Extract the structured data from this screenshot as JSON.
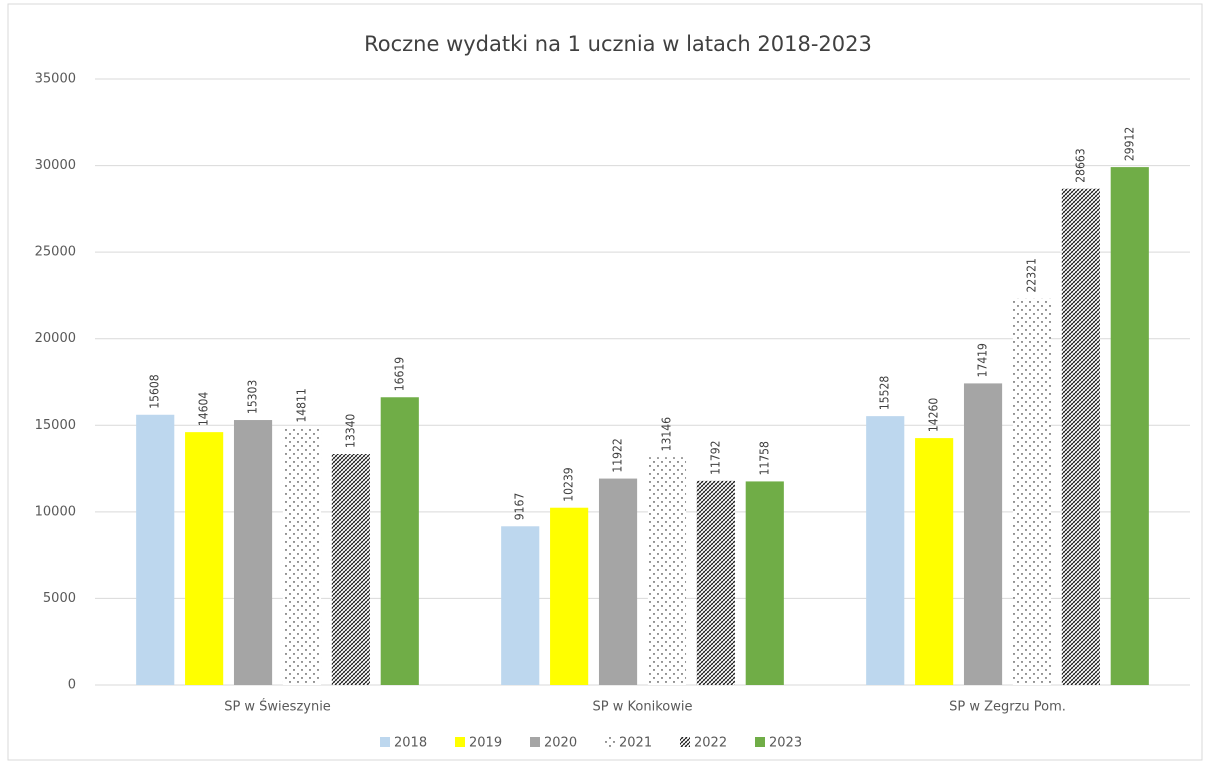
{
  "chart_data": {
    "type": "bar",
    "title": "Roczne wydatki na 1 ucznia w latach 2018-2023",
    "categories": [
      "SP w Świeszynie",
      "SP w Konikowie",
      "SP w Zegrzu Pom."
    ],
    "series": [
      {
        "name": "2018",
        "color": "#bdd7ee",
        "values": [
          15608,
          9167,
          15528
        ]
      },
      {
        "name": "2019",
        "color": "#ffff00",
        "values": [
          14604,
          10239,
          14260
        ]
      },
      {
        "name": "2020",
        "color": "#a5a5a5",
        "values": [
          15303,
          11922,
          17419
        ]
      },
      {
        "name": "2021",
        "color": "#000000",
        "pattern": "dots",
        "values": [
          14811,
          13146,
          22321
        ]
      },
      {
        "name": "2022",
        "color": "#000000",
        "pattern": "hatch",
        "values": [
          13340,
          11792,
          28663
        ]
      },
      {
        "name": "2023",
        "color": "#70ad47",
        "values": [
          16619,
          11758,
          29912
        ]
      }
    ],
    "ylim": [
      0,
      35000
    ],
    "yticks": [
      0,
      5000,
      10000,
      15000,
      20000,
      25000,
      30000,
      35000
    ],
    "grid": true,
    "legend": "bottom",
    "data_labels": true
  }
}
